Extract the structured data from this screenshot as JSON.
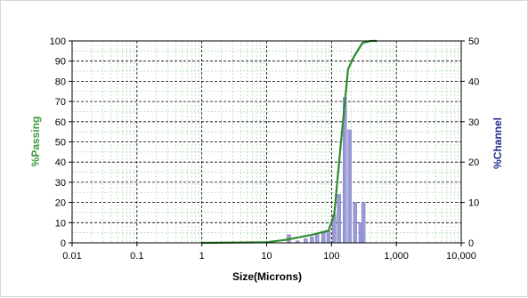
{
  "chart_data": {
    "type": "line",
    "title": "",
    "xlabel": "Size(Microns)",
    "ylabel_left": "%Passing",
    "ylabel_right": "%Channel",
    "x_scale": "log",
    "xlim": [
      0.01,
      10000
    ],
    "ylim_left": [
      0,
      100
    ],
    "ylim_right": [
      0,
      50
    ],
    "x_tick_labels": [
      "0.01",
      "0.1",
      "1",
      "10",
      "100",
      "1,000",
      "10,000"
    ],
    "y_left_tick_labels": [
      "0",
      "10",
      "20",
      "30",
      "40",
      "50",
      "60",
      "70",
      "80",
      "90",
      "100"
    ],
    "y_right_tick_labels": [
      "0",
      "10",
      "20",
      "30",
      "40",
      "50"
    ],
    "grid": true,
    "colors": {
      "passing_line": "#2e8b2e",
      "channel_bars": "#9a9ad8",
      "left_axis_label": "#3b9a3b",
      "right_axis_label": "#1f2f8f",
      "grid_dark": "#000000",
      "grid_minor": "#9ccf9c"
    },
    "series": [
      {
        "axis": "left",
        "kind": "line",
        "x": [
          1,
          10,
          20,
          50,
          90,
          110,
          140,
          180,
          220,
          300,
          400,
          500
        ],
        "y": [
          0,
          0.3,
          1.5,
          4,
          6,
          14,
          50,
          86,
          92,
          99,
          100,
          100
        ]
      },
      {
        "axis": "right",
        "kind": "bar",
        "x": [
          22,
          30,
          40,
          50,
          60,
          75,
          90,
          110,
          130,
          160,
          190,
          230,
          280,
          310
        ],
        "y": [
          2,
          0.5,
          1,
          1.5,
          2,
          2.5,
          3,
          7,
          12,
          36,
          28,
          10,
          5,
          10
        ]
      }
    ]
  }
}
